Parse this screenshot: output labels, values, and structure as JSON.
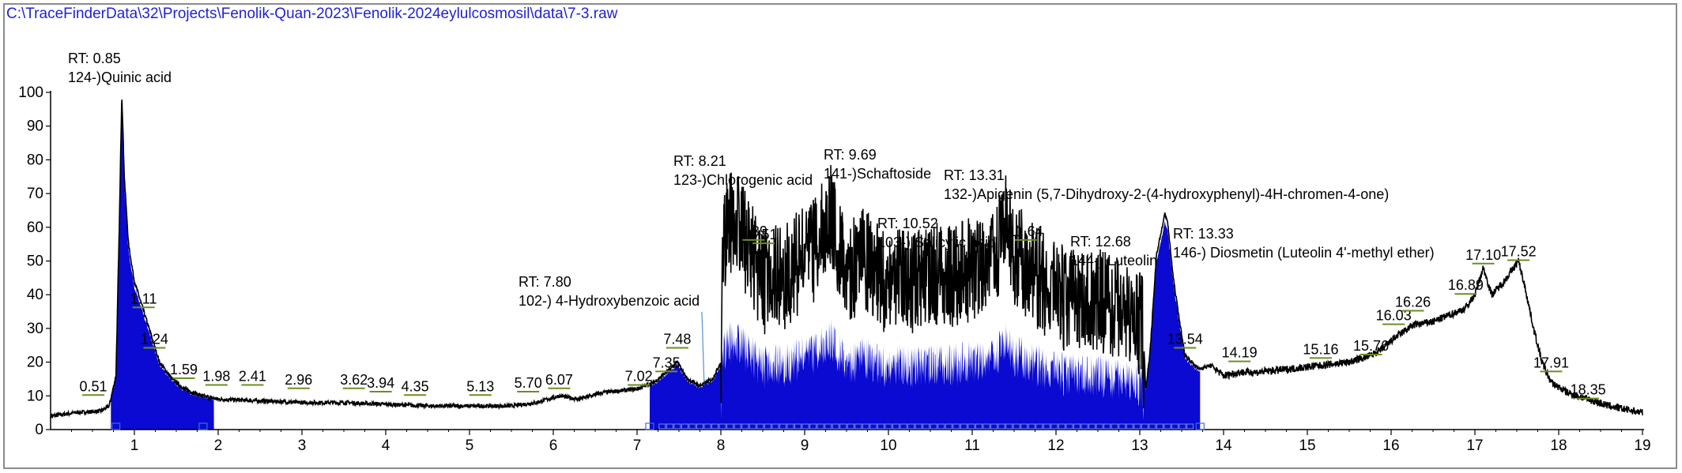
{
  "window": {
    "file_path": "C:\\TraceFinderData\\32\\Projects\\Fenolik-Quan-2023\\Fenolik-2024eylulcosmosil\\data\\7-3.raw"
  },
  "colors": {
    "trace": "#000000",
    "fill": "#0a0ad2",
    "path_text": "#1f1fd6",
    "marker": "#6b8e23",
    "axis": "#000000"
  },
  "chart_data": {
    "type": "area",
    "xlim": [
      0.0,
      19.0
    ],
    "ylim": [
      0,
      100
    ],
    "x_ticks": [
      1,
      2,
      3,
      4,
      5,
      6,
      7,
      8,
      9,
      10,
      11,
      12,
      13,
      14,
      15,
      16,
      17,
      18,
      19
    ],
    "y_ticks": [
      0,
      10,
      20,
      30,
      40,
      50,
      60,
      70,
      80,
      90,
      100
    ],
    "trace": {
      "x": [
        0.0,
        0.3,
        0.6,
        0.7,
        0.78,
        0.82,
        0.85,
        0.88,
        0.93,
        1.0,
        1.1,
        1.2,
        1.3,
        1.45,
        1.6,
        1.8,
        2.0,
        2.5,
        3.0,
        3.5,
        4.0,
        4.5,
        5.0,
        5.5,
        5.8,
        6.07,
        6.3,
        6.6,
        7.0,
        7.2,
        7.4,
        7.48,
        7.6,
        7.75,
        7.9,
        8.0,
        8.02,
        8.1,
        8.21,
        8.3,
        8.39,
        8.5,
        8.6,
        8.75,
        8.9,
        9.1,
        9.3,
        9.4,
        9.55,
        9.69,
        9.8,
        9.95,
        10.1,
        10.3,
        10.52,
        10.7,
        10.9,
        11.1,
        11.25,
        11.4,
        11.5,
        11.64,
        11.75,
        11.9,
        12.1,
        12.3,
        12.45,
        12.68,
        12.8,
        12.95,
        13.03,
        13.07,
        13.12,
        13.2,
        13.3,
        13.33,
        13.4,
        13.5,
        13.54,
        13.7,
        13.85,
        14.0,
        14.19,
        14.4,
        14.8,
        15.16,
        15.5,
        15.76,
        15.9,
        16.03,
        16.26,
        16.5,
        16.7,
        16.89,
        17.0,
        17.1,
        17.2,
        17.35,
        17.52,
        17.6,
        17.7,
        17.8,
        17.91,
        18.1,
        18.35,
        18.6,
        19.0
      ],
      "y": [
        4,
        5,
        5.5,
        7,
        16,
        60,
        100,
        75,
        55,
        44,
        36,
        28,
        20,
        15,
        12,
        10,
        9,
        8.5,
        8,
        8,
        7.5,
        7,
        7,
        7,
        8,
        10,
        9,
        11,
        12,
        14,
        18,
        20,
        15,
        13,
        15,
        20,
        62,
        68,
        70,
        62,
        58,
        50,
        54,
        52,
        56,
        60,
        72,
        62,
        54,
        58,
        56,
        50,
        54,
        50,
        54,
        52,
        54,
        56,
        58,
        67,
        60,
        56,
        52,
        50,
        46,
        44,
        46,
        44,
        42,
        40,
        38,
        12,
        22,
        52,
        64,
        62,
        45,
        28,
        22,
        18,
        19,
        16,
        17,
        17,
        18,
        19,
        20,
        22,
        24,
        27,
        31,
        32,
        34,
        36,
        40,
        48,
        40,
        44,
        50,
        42,
        30,
        20,
        14,
        11,
        9,
        7,
        5
      ]
    },
    "peaks": [
      {
        "rt": "RT: 0.85",
        "name": "124-)Quinic acid"
      },
      {
        "rt": "RT: 7.80",
        "name": "102-) 4-Hydroxybenzoic acid"
      },
      {
        "rt": "RT: 8.21",
        "name": "123-)Chlorogenic acid"
      },
      {
        "rt": "RT: 9.69",
        "name": "141-)Schaftoside"
      },
      {
        "rt": "RT: 10.52",
        "name": "103-) Salicylic acid"
      },
      {
        "rt": "RT: 13.31",
        "name": "132-)Apigenin (5,7-Dihydroxy-2-(4-hydroxyphenyl)-4H-chromen-4-one)"
      },
      {
        "rt": "RT: 12.68",
        "name": "144-) Luteolin"
      },
      {
        "rt": "RT: 13.33",
        "name": "146-) Diosmetin (Luteolin 4'-methyl ether)"
      }
    ],
    "rt_labels": [
      {
        "x": 0.51,
        "y": 10,
        "label": "0.51"
      },
      {
        "x": 1.11,
        "y": 36,
        "label": "1.11"
      },
      {
        "x": 1.24,
        "y": 24,
        "label": "1.24"
      },
      {
        "x": 1.59,
        "y": 15,
        "label": "1.59"
      },
      {
        "x": 1.98,
        "y": 13,
        "label": "1.98"
      },
      {
        "x": 2.41,
        "y": 13,
        "label": "2.41"
      },
      {
        "x": 2.96,
        "y": 12,
        "label": "2.96"
      },
      {
        "x": 3.62,
        "y": 12,
        "label": "3.62"
      },
      {
        "x": 3.94,
        "y": 11,
        "label": "3.94"
      },
      {
        "x": 4.35,
        "y": 10,
        "label": "4.35"
      },
      {
        "x": 5.13,
        "y": 10,
        "label": "5.13"
      },
      {
        "x": 5.7,
        "y": 11,
        "label": "5.70"
      },
      {
        "x": 6.07,
        "y": 12,
        "label": "6.07"
      },
      {
        "x": 7.02,
        "y": 13,
        "label": "7.02"
      },
      {
        "x": 7.35,
        "y": 17,
        "label": "7.35"
      },
      {
        "x": 7.48,
        "y": 24,
        "label": "7.48"
      },
      {
        "x": 8.39,
        "y": 56,
        "label": "8.39"
      },
      {
        "x": 8.51,
        "y": 55,
        "label": "8.51"
      },
      {
        "x": 11.64,
        "y": 56,
        "label": "11.64"
      },
      {
        "x": 13.54,
        "y": 24,
        "label": "13.54"
      },
      {
        "x": 14.19,
        "y": 20,
        "label": "14.19"
      },
      {
        "x": 15.16,
        "y": 21,
        "label": "15.16"
      },
      {
        "x": 15.76,
        "y": 22,
        "label": "15.76"
      },
      {
        "x": 16.03,
        "y": 31,
        "label": "16.03"
      },
      {
        "x": 16.26,
        "y": 35,
        "label": "16.26"
      },
      {
        "x": 16.89,
        "y": 40,
        "label": "16.89"
      },
      {
        "x": 17.1,
        "y": 49,
        "label": "17.10"
      },
      {
        "x": 17.52,
        "y": 50,
        "label": "17.52"
      },
      {
        "x": 17.91,
        "y": 17,
        "label": "17.91"
      },
      {
        "x": 18.35,
        "y": 9,
        "label": "18.35"
      }
    ]
  }
}
